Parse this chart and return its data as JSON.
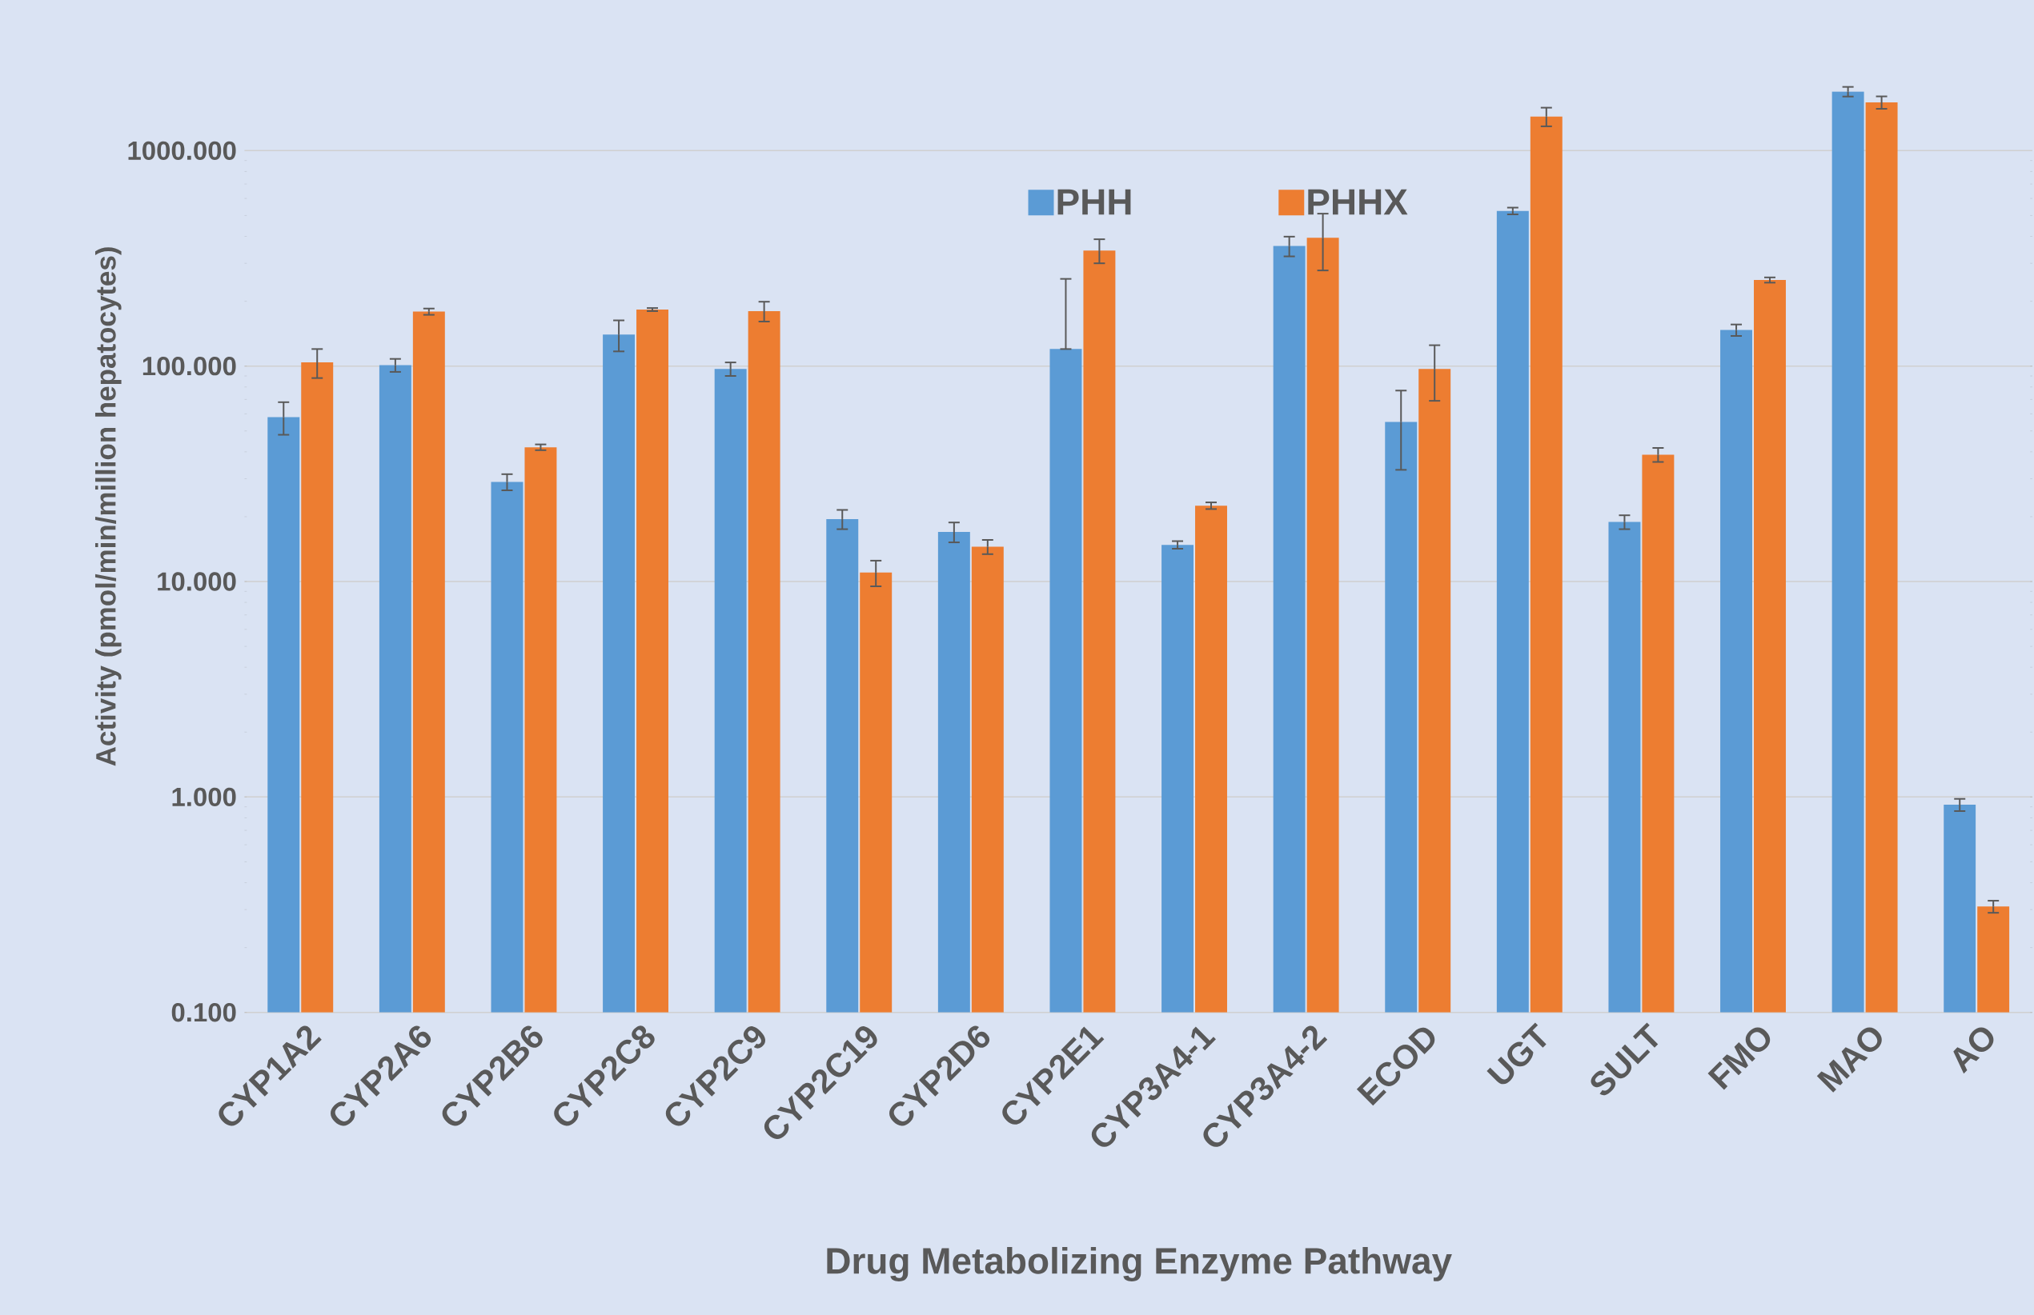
{
  "chart_data": {
    "type": "bar",
    "xlabel": "Drug Metabolizing Enzyme Pathway",
    "ylabel": "Activity (pmol/min/million hepatocytes)",
    "categories": [
      "CYP1A2",
      "CYP2A6",
      "CYP2B6",
      "CYP2C8",
      "CYP2C9",
      "CYP2C19",
      "CYP2D6",
      "CYP2E1",
      "CYP3A4-1",
      "CYP3A4-2",
      "ECOD",
      "UGT",
      "SULT",
      "FMO",
      "MAO",
      "AO"
    ],
    "series": [
      {
        "name": "PHH",
        "color": "#5b9bd5",
        "values": [
          58,
          101,
          29,
          140,
          97,
          19.5,
          17,
          120,
          14.8,
          361,
          55,
          525,
          18.9,
          147,
          1880,
          0.92
        ],
        "errors": [
          10,
          7,
          2.5,
          23,
          7,
          2,
          1.8,
          [
            120,
            254
          ],
          0.6,
          38,
          22,
          19,
          1.4,
          9,
          97,
          0.06
        ]
      },
      {
        "name": "PHHX",
        "color": "#ed7d31",
        "values": [
          104,
          179,
          42,
          183,
          180,
          11,
          14.5,
          344,
          22.5,
          394,
          97,
          1440,
          38.8,
          251,
          1675,
          0.31
        ],
        "errors": [
          16,
          6,
          1.3,
          3,
          19,
          1.5,
          1.1,
          44,
          0.8,
          116,
          28,
          143,
          2.9,
          7,
          111,
          0.02
        ]
      }
    ],
    "log": "y",
    "ylim": [
      0.1,
      5000
    ],
    "yticks": [
      {
        "value": 0.1,
        "label": "0.100"
      },
      {
        "value": 1,
        "label": "1.000"
      },
      {
        "value": 10,
        "label": "10.000"
      },
      {
        "value": 100,
        "label": "100.000"
      },
      {
        "value": 1000,
        "label": "1000.000"
      }
    ],
    "grid": "y",
    "legend": "top"
  }
}
